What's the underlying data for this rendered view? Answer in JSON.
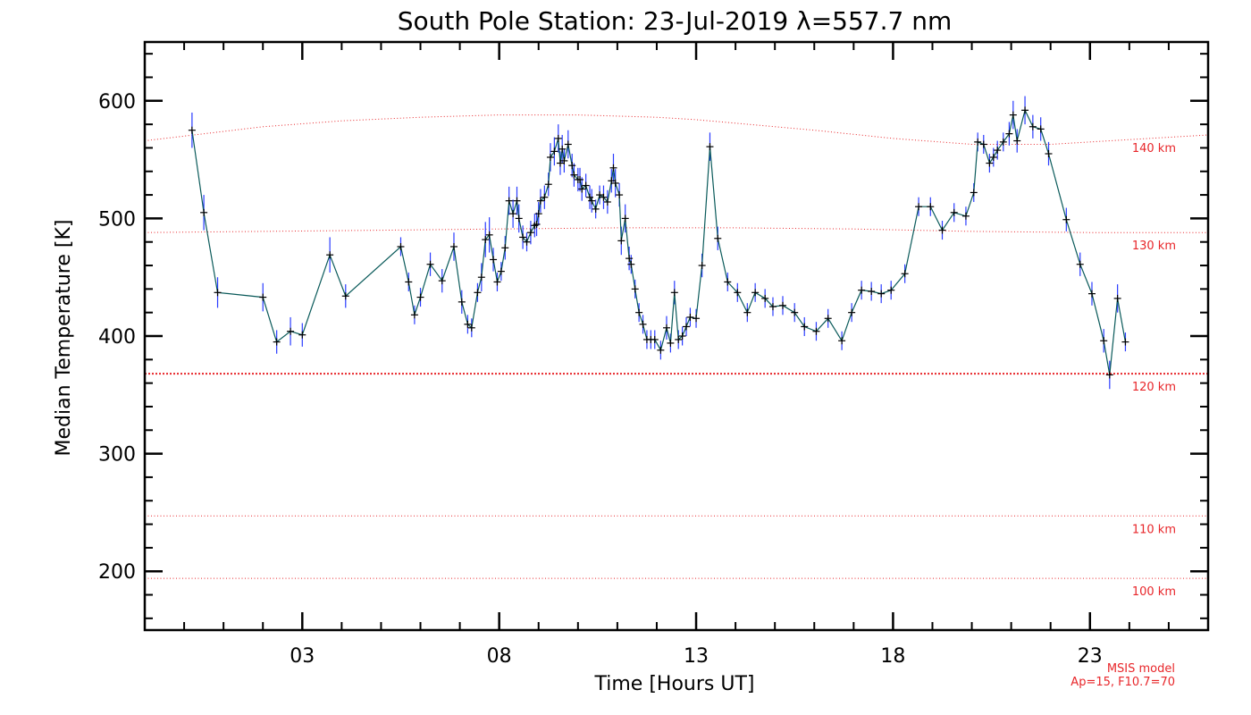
{
  "chart_data": {
    "type": "line",
    "title": "South Pole Station: 23-Jul-2019 λ=557.7 nm",
    "xlabel": "Time [Hours UT]",
    "ylabel": "Median Temperature [K]",
    "xlim": [
      -1,
      26
    ],
    "ylim": [
      150,
      650
    ],
    "x_ticks": [
      3,
      8,
      13,
      18,
      23
    ],
    "x_tick_labels": [
      "03",
      "08",
      "13",
      "18",
      "23"
    ],
    "y_ticks": [
      200,
      300,
      400,
      500,
      600
    ],
    "y_tick_labels": [
      "200",
      "300",
      "400",
      "500",
      "600"
    ],
    "series": [
      {
        "name": "Median Temperature",
        "x": [
          0.2,
          0.5,
          0.85,
          2.0,
          2.35,
          2.7,
          3.0,
          3.7,
          4.1,
          5.5,
          5.7,
          5.85,
          6.0,
          6.25,
          6.55,
          6.85,
          7.05,
          7.2,
          7.3,
          7.45,
          7.55,
          7.65,
          7.75,
          7.85,
          7.95,
          8.05,
          8.15,
          8.25,
          8.35,
          8.45,
          8.5,
          8.6,
          8.7,
          8.8,
          8.9,
          8.95,
          9.0,
          9.05,
          9.15,
          9.25,
          9.3,
          9.4,
          9.5,
          9.55,
          9.6,
          9.65,
          9.75,
          9.85,
          9.9,
          10.0,
          10.05,
          10.1,
          10.2,
          10.3,
          10.35,
          10.45,
          10.55,
          10.65,
          10.75,
          10.85,
          10.9,
          10.95,
          11.05,
          11.1,
          11.2,
          11.3,
          11.35,
          11.45,
          11.55,
          11.65,
          11.75,
          11.85,
          11.95,
          12.1,
          12.25,
          12.35,
          12.45,
          12.55,
          12.65,
          12.75,
          12.85,
          13.0,
          13.15,
          13.35,
          13.55,
          13.8,
          14.05,
          14.3,
          14.5,
          14.75,
          14.95,
          15.2,
          15.5,
          15.75,
          16.05,
          16.35,
          16.7,
          16.95,
          17.2,
          17.45,
          17.7,
          17.95,
          18.3,
          18.65,
          18.95,
          19.25,
          19.55,
          19.85,
          20.05,
          20.15,
          20.3,
          20.45,
          20.55,
          20.65,
          20.8,
          20.95,
          21.05,
          21.15,
          21.35,
          21.55,
          21.75,
          21.95,
          22.4,
          22.75,
          23.05,
          23.35,
          23.5,
          23.7,
          23.9
        ],
        "y": [
          575,
          505,
          437,
          433,
          395,
          404,
          401,
          469,
          434,
          476,
          446,
          418,
          433,
          461,
          447,
          476,
          429,
          410,
          407,
          437,
          450,
          482,
          486,
          465,
          446,
          455,
          475,
          515,
          504,
          515,
          500,
          484,
          480,
          488,
          494,
          495,
          504,
          515,
          518,
          529,
          552,
          557,
          568,
          547,
          559,
          549,
          563,
          545,
          537,
          533,
          533,
          525,
          528,
          518,
          515,
          508,
          520,
          518,
          514,
          532,
          543,
          530,
          520,
          481,
          500,
          466,
          461,
          440,
          420,
          410,
          397,
          397,
          397,
          388,
          407,
          394,
          437,
          397,
          400,
          408,
          416,
          415,
          460,
          561,
          483,
          446,
          437,
          420,
          437,
          432,
          425,
          426,
          420,
          408,
          404,
          415,
          396,
          420,
          439,
          438,
          436,
          439,
          453,
          510,
          510,
          490,
          505,
          502,
          522,
          565,
          563,
          547,
          552,
          558,
          565,
          572,
          588,
          566,
          592,
          578,
          576,
          555,
          499,
          461,
          436,
          396,
          367,
          432,
          395
        ],
        "err": [
          15,
          15,
          13,
          12,
          10,
          12,
          10,
          15,
          10,
          8,
          8,
          8,
          8,
          10,
          10,
          12,
          10,
          8,
          8,
          8,
          12,
          15,
          15,
          10,
          8,
          8,
          10,
          12,
          12,
          12,
          12,
          10,
          8,
          10,
          10,
          10,
          10,
          10,
          10,
          10,
          12,
          12,
          12,
          10,
          12,
          10,
          12,
          10,
          10,
          10,
          10,
          10,
          10,
          10,
          10,
          8,
          8,
          10,
          10,
          10,
          12,
          12,
          10,
          12,
          12,
          10,
          8,
          8,
          8,
          8,
          8,
          8,
          8,
          8,
          10,
          8,
          10,
          8,
          8,
          8,
          8,
          8,
          10,
          12,
          10,
          8,
          8,
          8,
          8,
          8,
          8,
          8,
          8,
          8,
          8,
          8,
          8,
          8,
          8,
          8,
          8,
          8,
          8,
          8,
          8,
          8,
          8,
          8,
          8,
          8,
          8,
          8,
          8,
          8,
          8,
          10,
          12,
          10,
          12,
          10,
          10,
          10,
          10,
          10,
          10,
          10,
          12,
          12,
          8
        ]
      }
    ],
    "reference_curves": [
      {
        "label": "140 km",
        "x": [
          -1,
          0,
          2,
          4,
          6,
          8,
          9,
          10,
          11,
          12,
          13,
          14,
          16,
          18,
          20,
          22,
          24,
          26
        ],
        "y": [
          566,
          570,
          578,
          583,
          586,
          588,
          588,
          588,
          587,
          586,
          584,
          581,
          575,
          568,
          563,
          563,
          567,
          571
        ]
      },
      {
        "label": "130 km",
        "x": [
          -1,
          2,
          5,
          8,
          11,
          14,
          17,
          20,
          23,
          26
        ],
        "y": [
          488,
          489,
          490,
          491,
          492,
          492,
          491,
          489,
          488,
          488
        ]
      },
      {
        "label": "120 km",
        "x": [
          -1,
          26
        ],
        "y": [
          368,
          368
        ]
      },
      {
        "label": "110 km",
        "x": [
          -1,
          26
        ],
        "y": [
          247,
          247
        ]
      },
      {
        "label": "100 km",
        "x": [
          -1,
          26
        ],
        "y": [
          194,
          194
        ]
      }
    ],
    "annotations": [
      "MSIS model",
      "Ap=15, F10.7=70"
    ]
  }
}
